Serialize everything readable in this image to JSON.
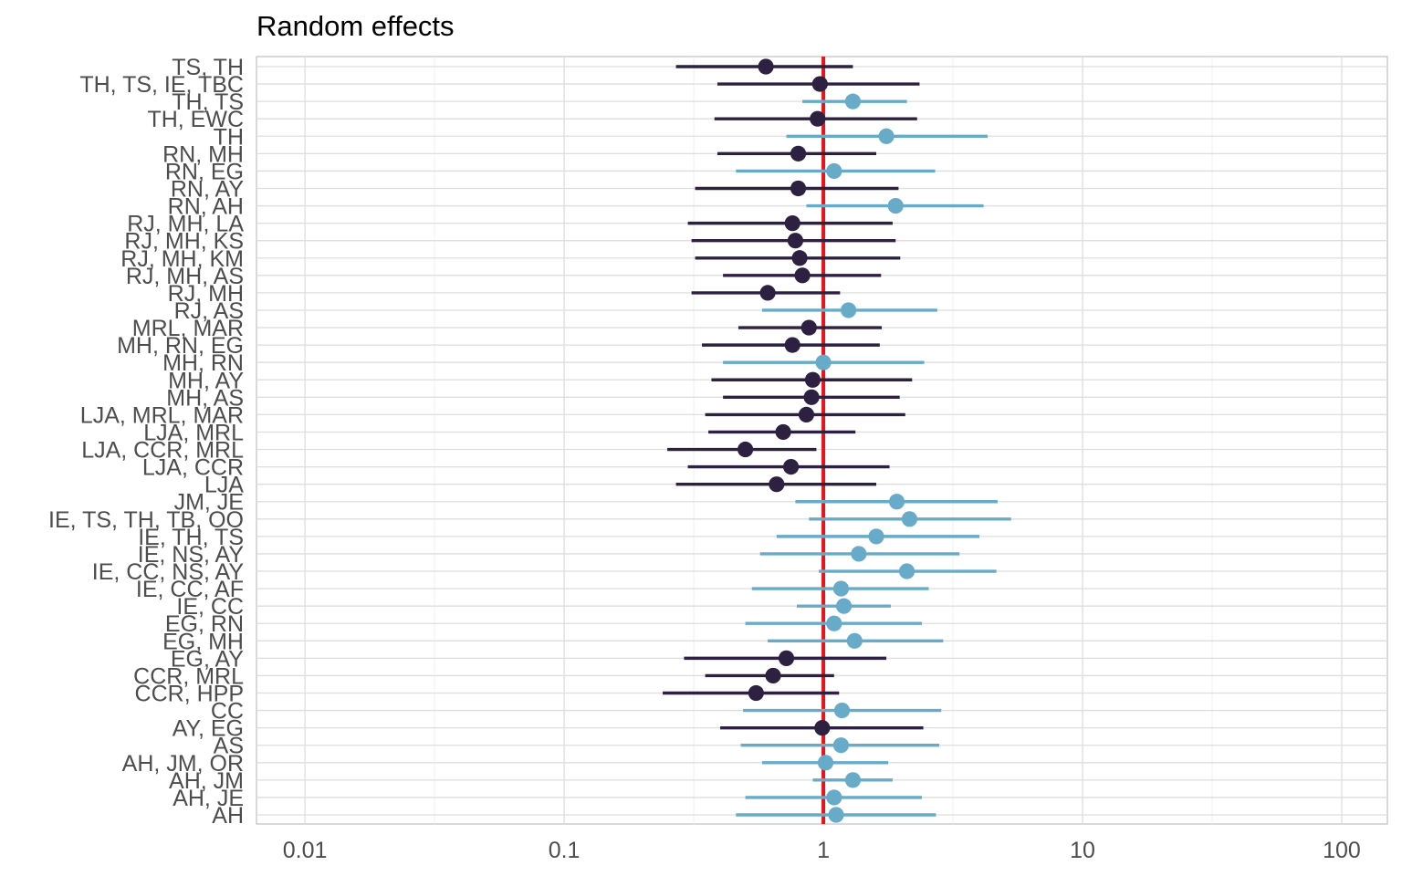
{
  "chart_data": {
    "type": "forest",
    "title": "Random effects",
    "xlabel": "",
    "ylabel": "",
    "x_scale": "log10",
    "xlim": [
      0.0065,
      150
    ],
    "x_ticks": [
      0.01,
      0.1,
      1,
      10,
      100
    ],
    "x_tick_labels": [
      "0.01",
      "0.1",
      "1",
      "10",
      "100"
    ],
    "reference_line": 1,
    "reference_color": "#e8141b",
    "grid": true,
    "legend": "none",
    "colors": {
      "below_one": "#2e2040",
      "above_one": "#67abc9"
    },
    "rows": [
      {
        "label": "TS, TH",
        "estimate": 0.6,
        "lower": 0.27,
        "upper": 1.3
      },
      {
        "label": "TH, TS, IE, TBC",
        "estimate": 0.97,
        "lower": 0.39,
        "upper": 2.35
      },
      {
        "label": "TH, TS",
        "estimate": 1.3,
        "lower": 0.83,
        "upper": 2.1
      },
      {
        "label": "TH, EWC",
        "estimate": 0.95,
        "lower": 0.38,
        "upper": 2.3
      },
      {
        "label": "TH",
        "estimate": 1.75,
        "lower": 0.72,
        "upper": 4.3
      },
      {
        "label": "RN, MH",
        "estimate": 0.8,
        "lower": 0.39,
        "upper": 1.6
      },
      {
        "label": "RN, EG",
        "estimate": 1.1,
        "lower": 0.46,
        "upper": 2.7
      },
      {
        "label": "RN, AY",
        "estimate": 0.8,
        "lower": 0.32,
        "upper": 1.95
      },
      {
        "label": "RN, AH",
        "estimate": 1.9,
        "lower": 0.86,
        "upper": 4.15
      },
      {
        "label": "RJ, MH, LA",
        "estimate": 0.76,
        "lower": 0.3,
        "upper": 1.85
      },
      {
        "label": "RJ, MH, KS",
        "estimate": 0.78,
        "lower": 0.31,
        "upper": 1.9
      },
      {
        "label": "RJ, MH, KM",
        "estimate": 0.81,
        "lower": 0.32,
        "upper": 1.98
      },
      {
        "label": "RJ, MH, AS",
        "estimate": 0.83,
        "lower": 0.41,
        "upper": 1.67
      },
      {
        "label": "RJ, MH",
        "estimate": 0.61,
        "lower": 0.31,
        "upper": 1.16
      },
      {
        "label": "RJ, AS",
        "estimate": 1.25,
        "lower": 0.58,
        "upper": 2.75
      },
      {
        "label": "MRL, MAR",
        "estimate": 0.88,
        "lower": 0.47,
        "upper": 1.68
      },
      {
        "label": "MH, RN, EG",
        "estimate": 0.76,
        "lower": 0.34,
        "upper": 1.65
      },
      {
        "label": "MH, RN",
        "estimate": 1.0,
        "lower": 0.41,
        "upper": 2.45
      },
      {
        "label": "MH, AY",
        "estimate": 0.91,
        "lower": 0.37,
        "upper": 2.2
      },
      {
        "label": "MH, AS",
        "estimate": 0.9,
        "lower": 0.41,
        "upper": 1.97
      },
      {
        "label": "LJA, MRL, MAR",
        "estimate": 0.86,
        "lower": 0.35,
        "upper": 2.07
      },
      {
        "label": "LJA, MRL",
        "estimate": 0.7,
        "lower": 0.36,
        "upper": 1.33
      },
      {
        "label": "LJA, CCR, MRL",
        "estimate": 0.5,
        "lower": 0.25,
        "upper": 0.94
      },
      {
        "label": "LJA, CCR",
        "estimate": 0.75,
        "lower": 0.3,
        "upper": 1.8
      },
      {
        "label": "LJA",
        "estimate": 0.66,
        "lower": 0.27,
        "upper": 1.6
      },
      {
        "label": "JM, JE",
        "estimate": 1.92,
        "lower": 0.78,
        "upper": 4.7
      },
      {
        "label": "IE, TS, TH, TB, OO",
        "estimate": 2.15,
        "lower": 0.88,
        "upper": 5.3
      },
      {
        "label": "IE, TH, TS",
        "estimate": 1.6,
        "lower": 0.66,
        "upper": 4.0
      },
      {
        "label": "IE, NS, AY",
        "estimate": 1.37,
        "lower": 0.57,
        "upper": 3.35
      },
      {
        "label": "IE, CC, NS, AY",
        "estimate": 2.1,
        "lower": 0.96,
        "upper": 4.65
      },
      {
        "label": "IE, CC, AF",
        "estimate": 1.17,
        "lower": 0.53,
        "upper": 2.55
      },
      {
        "label": "IE, CC",
        "estimate": 1.2,
        "lower": 0.79,
        "upper": 1.82
      },
      {
        "label": "EG, RN",
        "estimate": 1.1,
        "lower": 0.5,
        "upper": 2.4
      },
      {
        "label": "EG, MH",
        "estimate": 1.32,
        "lower": 0.61,
        "upper": 2.9
      },
      {
        "label": "EG, AY",
        "estimate": 0.72,
        "lower": 0.29,
        "upper": 1.75
      },
      {
        "label": "CCR, MRL",
        "estimate": 0.64,
        "lower": 0.35,
        "upper": 1.1
      },
      {
        "label": "CCR, HPP",
        "estimate": 0.55,
        "lower": 0.24,
        "upper": 1.15
      },
      {
        "label": "CC",
        "estimate": 1.18,
        "lower": 0.49,
        "upper": 2.85
      },
      {
        "label": "AY, EG",
        "estimate": 0.99,
        "lower": 0.4,
        "upper": 2.43
      },
      {
        "label": "AS",
        "estimate": 1.17,
        "lower": 0.48,
        "upper": 2.8
      },
      {
        "label": "AH, JM, OR",
        "estimate": 1.02,
        "lower": 0.58,
        "upper": 1.78
      },
      {
        "label": "AH, JM",
        "estimate": 1.3,
        "lower": 0.91,
        "upper": 1.85
      },
      {
        "label": "AH, JE",
        "estimate": 1.1,
        "lower": 0.5,
        "upper": 2.4
      },
      {
        "label": "AH",
        "estimate": 1.12,
        "lower": 0.46,
        "upper": 2.72
      }
    ]
  }
}
